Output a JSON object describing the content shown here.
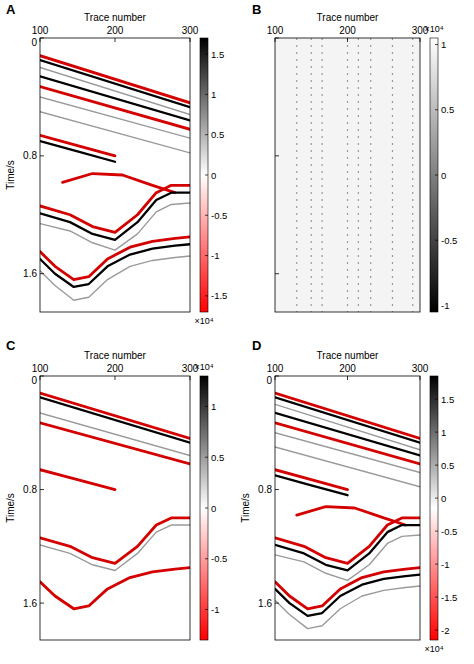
{
  "chart_data": [
    {
      "type": "heatmap",
      "title": "A",
      "x_label": "Trace number",
      "y_label": "Time/s",
      "xlim": [
        100,
        300
      ],
      "xticks": [
        100,
        200,
        300
      ],
      "ylim": [
        0,
        1.86
      ],
      "yticks": [
        0,
        0.8,
        1.6
      ],
      "colorbar": {
        "range": [
          -1.7,
          1.7
        ],
        "ticks": [
          -1.5,
          -1,
          -0.5,
          0,
          0.5,
          1,
          1.5
        ],
        "colors": [
          "#ff0000",
          "#ffffff",
          "#000000"
        ],
        "label": "×10⁴"
      },
      "series": [
        {
          "color": "#d40000",
          "x": [
            100,
            300
          ],
          "values": [
            0.12,
            0.44
          ]
        },
        {
          "color": "#000000",
          "x": [
            100,
            300
          ],
          "values": [
            0.15,
            0.47
          ]
        },
        {
          "color": "#9a9a9a",
          "x": [
            100,
            300
          ],
          "values": [
            0.2,
            0.52
          ]
        },
        {
          "color": "#000000",
          "x": [
            100,
            300
          ],
          "values": [
            0.26,
            0.56
          ]
        },
        {
          "color": "#d40000",
          "x": [
            100,
            300
          ],
          "values": [
            0.33,
            0.62
          ]
        },
        {
          "color": "#9a9a9a",
          "x": [
            100,
            300
          ],
          "values": [
            0.4,
            0.68
          ]
        },
        {
          "color": "#9a9a9a",
          "x": [
            100,
            300
          ],
          "values": [
            0.5,
            0.78
          ]
        },
        {
          "color": "#d40000",
          "x": [
            100,
            150,
            200
          ],
          "values": [
            0.66,
            0.73,
            0.8
          ]
        },
        {
          "color": "#000000",
          "x": [
            100,
            150,
            200
          ],
          "values": [
            0.7,
            0.77,
            0.84
          ]
        },
        {
          "color": "#d40000",
          "x": [
            130,
            170,
            210,
            250,
            280
          ],
          "values": [
            0.98,
            0.92,
            0.93,
            1.0,
            1.05
          ]
        },
        {
          "color": "#d40000",
          "x": [
            100,
            140,
            170,
            200,
            230,
            255,
            275,
            300
          ],
          "values": [
            1.14,
            1.2,
            1.28,
            1.32,
            1.2,
            1.05,
            1.0,
            1.0
          ]
        },
        {
          "color": "#000000",
          "x": [
            100,
            140,
            170,
            200,
            230,
            255,
            275,
            300
          ],
          "values": [
            1.19,
            1.25,
            1.33,
            1.37,
            1.25,
            1.1,
            1.05,
            1.05
          ]
        },
        {
          "color": "#9a9a9a",
          "x": [
            100,
            140,
            170,
            200,
            230,
            255,
            275,
            300
          ],
          "values": [
            1.26,
            1.31,
            1.39,
            1.44,
            1.33,
            1.18,
            1.13,
            1.12
          ]
        },
        {
          "color": "#d40000",
          "x": [
            100,
            120,
            145,
            165,
            190,
            220,
            250,
            280,
            300
          ],
          "values": [
            1.45,
            1.55,
            1.64,
            1.62,
            1.5,
            1.42,
            1.38,
            1.36,
            1.35
          ]
        },
        {
          "color": "#000000",
          "x": [
            100,
            120,
            145,
            165,
            190,
            220,
            250,
            280,
            300
          ],
          "values": [
            1.5,
            1.6,
            1.69,
            1.67,
            1.55,
            1.47,
            1.43,
            1.41,
            1.4
          ]
        },
        {
          "color": "#9a9a9a",
          "x": [
            100,
            120,
            145,
            165,
            190,
            220,
            250,
            280,
            300
          ],
          "values": [
            1.58,
            1.68,
            1.78,
            1.76,
            1.64,
            1.55,
            1.51,
            1.49,
            1.48
          ]
        }
      ]
    },
    {
      "type": "heatmap",
      "title": "B",
      "x_label": "Trace number",
      "tick_labels": "x",
      "xlim": [
        100,
        300
      ],
      "xticks": [
        100,
        200,
        300
      ],
      "ylim": [
        0,
        1.86
      ],
      "yticks": [
        0,
        0.8,
        1.6
      ],
      "colorbar": {
        "range": [
          -1.05,
          1.05
        ],
        "ticks": [
          -1,
          -0.5,
          0,
          0.5,
          1
        ],
        "colors": [
          "#000000",
          "#ffffff"
        ],
        "label": "×10⁴"
      },
      "streak_traces": [
        130,
        150,
        165,
        200,
        215,
        232,
        262,
        290
      ]
    },
    {
      "type": "heatmap",
      "title": "C",
      "x_label": "Trace number",
      "y_label": "Time/s",
      "xlim": [
        100,
        300
      ],
      "xticks": [
        100,
        200,
        300
      ],
      "ylim": [
        0,
        1.86
      ],
      "yticks": [
        0,
        0.8,
        1.6
      ],
      "colorbar": {
        "range": [
          -1.3,
          1.3
        ],
        "ticks": [
          -1,
          -0.5,
          0,
          0.5,
          1
        ],
        "colors": [
          "#ff0000",
          "#ffffff",
          "#000000"
        ],
        "label": "×10⁴"
      },
      "series": [
        {
          "color": "#d40000",
          "x": [
            100,
            300
          ],
          "values": [
            0.12,
            0.44
          ]
        },
        {
          "color": "#000000",
          "x": [
            100,
            300
          ],
          "values": [
            0.15,
            0.47
          ]
        },
        {
          "color": "#9a9a9a",
          "x": [
            100,
            300
          ],
          "values": [
            0.26,
            0.56
          ]
        },
        {
          "color": "#d40000",
          "x": [
            100,
            300
          ],
          "values": [
            0.33,
            0.62
          ]
        },
        {
          "color": "#d40000",
          "x": [
            100,
            150,
            200
          ],
          "values": [
            0.66,
            0.73,
            0.8
          ]
        },
        {
          "color": "#d40000",
          "x": [
            100,
            140,
            170,
            200,
            230,
            255,
            275,
            300
          ],
          "values": [
            1.14,
            1.2,
            1.28,
            1.32,
            1.2,
            1.05,
            1.0,
            1.0
          ]
        },
        {
          "color": "#9a9a9a",
          "x": [
            100,
            140,
            170,
            200,
            230,
            255,
            275,
            300
          ],
          "values": [
            1.19,
            1.25,
            1.33,
            1.37,
            1.25,
            1.1,
            1.05,
            1.05
          ]
        },
        {
          "color": "#d40000",
          "x": [
            100,
            120,
            145,
            165,
            190,
            220,
            250,
            280,
            300
          ],
          "values": [
            1.45,
            1.55,
            1.64,
            1.62,
            1.5,
            1.42,
            1.38,
            1.36,
            1.35
          ]
        }
      ]
    },
    {
      "type": "heatmap",
      "title": "D",
      "x_label": "Trace number",
      "y_label": "Time/s",
      "xlim": [
        100,
        300
      ],
      "xticks": [
        100,
        200,
        300
      ],
      "ylim": [
        0,
        1.86
      ],
      "yticks": [
        0,
        0.8,
        1.6
      ],
      "colorbar": {
        "range": [
          -2.15,
          1.85
        ],
        "ticks": [
          -2,
          -1.5,
          -1,
          -0.5,
          0,
          0.5,
          1,
          1.5
        ],
        "colors": [
          "#ff0000",
          "#ffffff",
          "#000000"
        ],
        "label": "×10⁴"
      },
      "series": [
        {
          "color": "#d40000",
          "x": [
            100,
            300
          ],
          "values": [
            0.12,
            0.44
          ]
        },
        {
          "color": "#000000",
          "x": [
            100,
            300
          ],
          "values": [
            0.15,
            0.47
          ]
        },
        {
          "color": "#9a9a9a",
          "x": [
            100,
            300
          ],
          "values": [
            0.2,
            0.52
          ]
        },
        {
          "color": "#000000",
          "x": [
            100,
            300
          ],
          "values": [
            0.26,
            0.56
          ]
        },
        {
          "color": "#d40000",
          "x": [
            100,
            300
          ],
          "values": [
            0.33,
            0.62
          ]
        },
        {
          "color": "#9a9a9a",
          "x": [
            100,
            300
          ],
          "values": [
            0.4,
            0.68
          ]
        },
        {
          "color": "#9a9a9a",
          "x": [
            100,
            300
          ],
          "values": [
            0.5,
            0.78
          ]
        },
        {
          "color": "#d40000",
          "x": [
            100,
            150,
            200
          ],
          "values": [
            0.66,
            0.73,
            0.8
          ]
        },
        {
          "color": "#000000",
          "x": [
            100,
            150,
            200
          ],
          "values": [
            0.7,
            0.77,
            0.84
          ]
        },
        {
          "color": "#d40000",
          "x": [
            130,
            170,
            210,
            250,
            280
          ],
          "values": [
            0.98,
            0.92,
            0.93,
            1.0,
            1.05
          ]
        },
        {
          "color": "#d40000",
          "x": [
            100,
            140,
            170,
            200,
            230,
            255,
            275,
            300
          ],
          "values": [
            1.14,
            1.2,
            1.28,
            1.32,
            1.2,
            1.05,
            1.0,
            1.0
          ]
        },
        {
          "color": "#000000",
          "x": [
            100,
            140,
            170,
            200,
            230,
            255,
            275,
            300
          ],
          "values": [
            1.19,
            1.25,
            1.33,
            1.37,
            1.25,
            1.1,
            1.05,
            1.05
          ]
        },
        {
          "color": "#9a9a9a",
          "x": [
            100,
            140,
            170,
            200,
            230,
            255,
            275,
            300
          ],
          "values": [
            1.26,
            1.31,
            1.39,
            1.44,
            1.33,
            1.18,
            1.13,
            1.12
          ]
        },
        {
          "color": "#d40000",
          "x": [
            100,
            120,
            145,
            165,
            190,
            220,
            250,
            280,
            300
          ],
          "values": [
            1.45,
            1.55,
            1.64,
            1.62,
            1.5,
            1.42,
            1.38,
            1.36,
            1.35
          ]
        },
        {
          "color": "#000000",
          "x": [
            100,
            120,
            145,
            165,
            190,
            220,
            250,
            280,
            300
          ],
          "values": [
            1.5,
            1.6,
            1.69,
            1.67,
            1.55,
            1.47,
            1.43,
            1.41,
            1.4
          ]
        },
        {
          "color": "#9a9a9a",
          "x": [
            100,
            120,
            145,
            165,
            190,
            220,
            250,
            280,
            300
          ],
          "values": [
            1.58,
            1.68,
            1.78,
            1.76,
            1.64,
            1.55,
            1.51,
            1.49,
            1.48
          ]
        }
      ]
    }
  ]
}
